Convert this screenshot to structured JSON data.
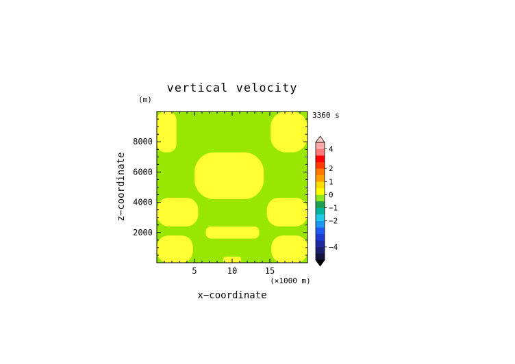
{
  "chart_data": {
    "type": "heatmap",
    "title": "vertical velocity",
    "xlabel": "x−coordinate",
    "ylabel": "z−coordinate",
    "x_unit": "(×1000 m)",
    "y_unit": "(m)",
    "time_label": "3360 s",
    "xlim": [
      0,
      20
    ],
    "ylim": [
      0,
      10000
    ],
    "x_ticks": [
      5,
      10,
      15
    ],
    "x_tick_labels": [
      "5",
      "10",
      "15"
    ],
    "y_ticks": [
      2000,
      4000,
      6000,
      8000
    ],
    "y_tick_labels": [
      "2000",
      "4000",
      "6000",
      "8000"
    ],
    "background_level": "0 to 0.5 (green)",
    "regions": [
      {
        "level": "0.5 to 1 (yellow)",
        "x": [
          0,
          2.6
        ],
        "z": [
          7300,
          10000
        ]
      },
      {
        "level": "0.5 to 1 (yellow)",
        "x": [
          15.1,
          20
        ],
        "z": [
          7300,
          10000
        ]
      },
      {
        "level": "0.5 to 1 (yellow)",
        "x": [
          5.0,
          14.2
        ],
        "z": [
          4200,
          7300
        ]
      },
      {
        "level": "0.5 to 1 (yellow)",
        "x": [
          0,
          5.5
        ],
        "z": [
          2400,
          4300
        ]
      },
      {
        "level": "0.5 to 1 (yellow)",
        "x": [
          14.6,
          20
        ],
        "z": [
          2400,
          4300
        ]
      },
      {
        "level": "0.5 to 1 (yellow)",
        "x": [
          6.5,
          13.6
        ],
        "z": [
          1600,
          2400
        ]
      },
      {
        "level": "0.5 to 1 (yellow)",
        "x": [
          0,
          4.8
        ],
        "z": [
          0,
          1800
        ]
      },
      {
        "level": "0.5 to 1 (yellow)",
        "x": [
          15.2,
          20
        ],
        "z": [
          0,
          1800
        ]
      },
      {
        "level": "0.5 to 1 (yellow)",
        "x": [
          8.8,
          11.2
        ],
        "z": [
          0,
          400
        ]
      }
    ],
    "colorbar": {
      "colors_bottom_to_top": [
        "#14143c",
        "#1e1e6e",
        "#1e28a0",
        "#1e3cd2",
        "#1e5af0",
        "#1e96f0",
        "#1ec8e6",
        "#00b4a0",
        "#1ea050",
        "#8ce61e",
        "#ffff00",
        "#ffdc00",
        "#ffa000",
        "#ff7800",
        "#ff3c00",
        "#ff0000",
        "#ff7878",
        "#ffaaaa"
      ],
      "tick_labels": [
        "−4",
        "−2",
        "−1",
        "0",
        "1",
        "2",
        "4"
      ],
      "tick_values": [
        -4,
        -2,
        -1,
        0,
        1,
        2,
        4
      ]
    },
    "colors": {
      "background_green": "#99e600",
      "region_yellow": "#ffff33"
    }
  }
}
